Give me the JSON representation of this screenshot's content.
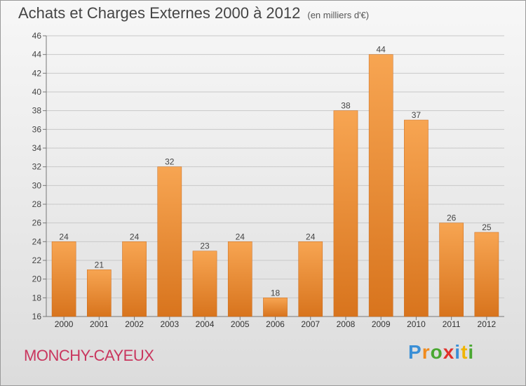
{
  "chart_data": {
    "type": "bar",
    "title": "Achats et Charges Externes 2000 à 2012",
    "subtitle": "(en milliers d'€)",
    "categories": [
      "2000",
      "2001",
      "2002",
      "2003",
      "2004",
      "2005",
      "2006",
      "2007",
      "2008",
      "2009",
      "2010",
      "2011",
      "2012"
    ],
    "values": [
      24,
      21,
      24,
      32,
      23,
      24,
      18,
      24,
      38,
      44,
      37,
      26,
      25
    ],
    "ylim": [
      16,
      46
    ],
    "yticks": [
      16,
      18,
      20,
      22,
      24,
      26,
      28,
      30,
      32,
      34,
      36,
      38,
      40,
      42,
      44,
      46
    ],
    "grid": true,
    "bar_color": "#f0913a",
    "xlabel": "",
    "ylabel": ""
  },
  "footer": {
    "town": "MONCHY-CAYEUX",
    "logo": "Proxiti",
    "logo_colors": [
      "#3a8fd6",
      "#f08a1c",
      "#4aa832",
      "#e0312b",
      "#3a8fd6",
      "#f0b400",
      "#4aa832"
    ]
  }
}
